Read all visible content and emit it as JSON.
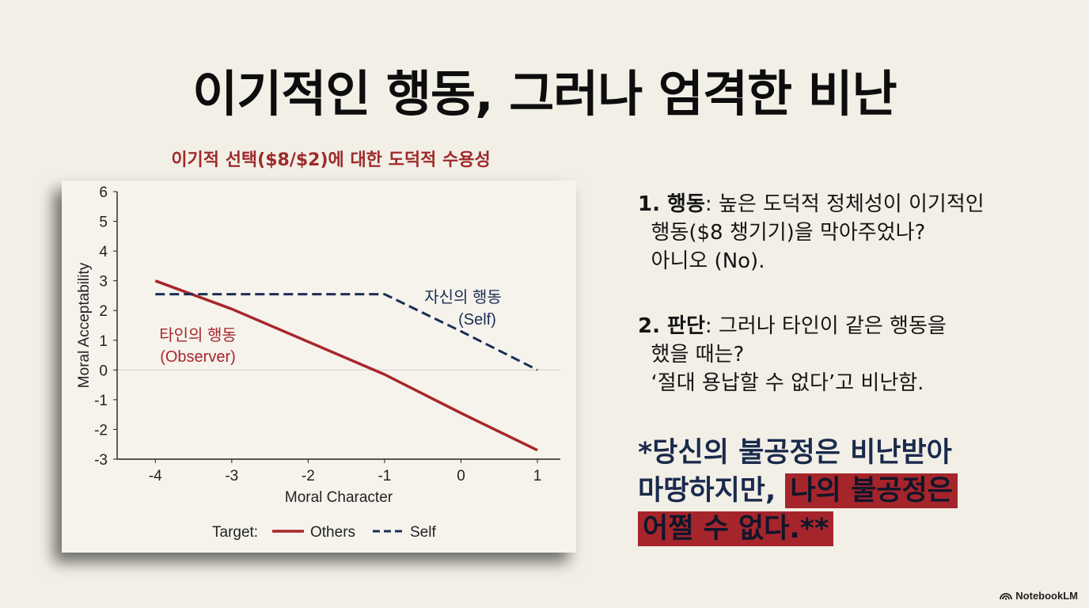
{
  "slide": {
    "title": "이기적인 행동, 그러나 엄격한 비난"
  },
  "chart_data": {
    "type": "line",
    "title": "이기적 선택($8/$2)에 대한 도덕적 수용성",
    "xlabel": "Moral Character",
    "ylabel": "Moral Acceptability",
    "xlim": [
      -4.5,
      1.3
    ],
    "ylim": [
      -3,
      6
    ],
    "xticks": [
      -4,
      -3,
      -2,
      -1,
      0,
      1
    ],
    "yticks": [
      6,
      5,
      4,
      3,
      2,
      1,
      0,
      -1,
      -2,
      -3
    ],
    "legend_title": "Target:",
    "legend_placement": "bottom",
    "series": [
      {
        "name": "Others",
        "label_line1": "타인의 행동",
        "label_line2": "(Observer)",
        "style": "solid",
        "color": "#a8262b",
        "x": [
          -4,
          -3,
          -2,
          -1,
          0,
          1
        ],
        "y": [
          3.0,
          2.05,
          0.95,
          -0.15,
          -1.45,
          -2.7
        ]
      },
      {
        "name": "Self",
        "label_line1": "자신의 행동",
        "label_line2": "(Self)",
        "style": "dashed",
        "color": "#1c2d55",
        "x": [
          -4,
          -3,
          -2,
          -1,
          0,
          1
        ],
        "y": [
          2.55,
          2.55,
          2.55,
          2.55,
          1.3,
          0.0
        ]
      }
    ]
  },
  "points": {
    "p1_head": "1. 행동",
    "p1_body": ": 높은 도덕적 정체성이 이기적인\n  행동($8 챙기기)을 막아주었나?\n  아니오 (No).",
    "p2_head": "2. 판단",
    "p2_body": ": 그러나 타인이 같은 행동을\n  했을 때는?\n  ‘절대 용납할 수 없다’고 비난함."
  },
  "emphasis": {
    "line_a": "*당신의 불공정은 비난받아\n마땅하지만, ",
    "line_b_highlight": "나의 불공정은",
    "line_c_highlight": "어쩔 수 없다.**"
  },
  "brand": {
    "name": "NotebookLM",
    "icon": "notebooklm-logo-icon"
  },
  "colors": {
    "background": "#f2efe6",
    "accent_red": "#a8262b",
    "accent_navy": "#1c2d55"
  }
}
